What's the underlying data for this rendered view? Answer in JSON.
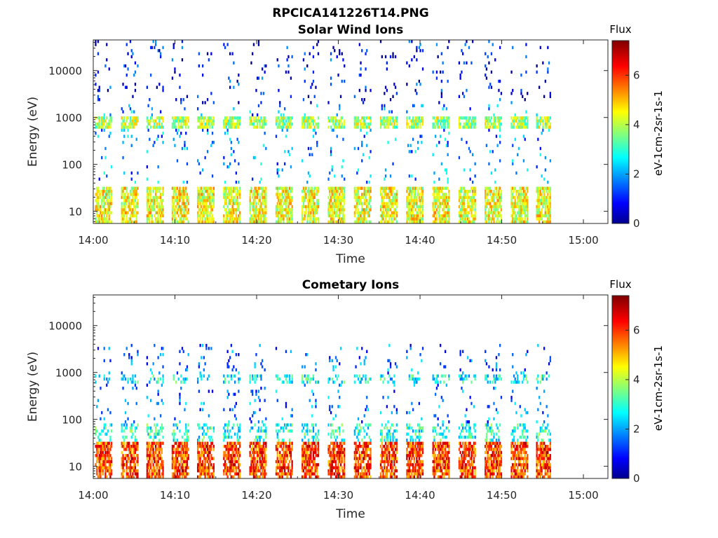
{
  "figure_title": "RPCICA141226T14.PNG",
  "chart_data": [
    {
      "type": "heatmap",
      "title": "Solar Wind Ions",
      "xlabel": "Time",
      "ylabel": "Energy (eV)",
      "x_ticks": [
        "14:00",
        "14:10",
        "14:20",
        "14:30",
        "14:40",
        "14:50",
        "15:00"
      ],
      "xlim_minutes": [
        0,
        63
      ],
      "y_ticks": [
        "10",
        "100",
        "1000",
        "10000"
      ],
      "ylim": [
        5.5,
        45000
      ],
      "y_scale": "log",
      "colorbar": {
        "title": "Flux",
        "label": "eV-1cm-2sr-1s-1",
        "ticks": [
          "0",
          "2",
          "4",
          "6"
        ],
        "range": [
          0,
          7.4
        ],
        "colormap": "jet"
      },
      "cycle_start_minutes": [
        0.2,
        3.4,
        6.5,
        9.6,
        12.7,
        15.9,
        19.1,
        22.3,
        25.5,
        28.7,
        31.9,
        35.1,
        38.3,
        41.5,
        44.7,
        47.9,
        51.1,
        54.2
      ],
      "data_end_minutes": 56,
      "bands": [
        {
          "energy_range": [
            5.5,
            35
          ],
          "flux": 4.5
        },
        {
          "energy_range": [
            550,
            1000
          ],
          "flux": 4.0
        },
        {
          "energy_range": [
            40,
            2000
          ],
          "flux": 2.0
        },
        {
          "energy_range": [
            2000,
            45000
          ],
          "flux": 1.0
        }
      ]
    },
    {
      "type": "heatmap",
      "title": "Cometary Ions",
      "xlabel": "Time",
      "ylabel": "Energy (eV)",
      "x_ticks": [
        "14:00",
        "14:10",
        "14:20",
        "14:30",
        "14:40",
        "14:50",
        "15:00"
      ],
      "xlim_minutes": [
        0,
        63
      ],
      "y_ticks": [
        "10",
        "100",
        "1000",
        "10000"
      ],
      "ylim": [
        5.5,
        45000
      ],
      "y_scale": "log",
      "colorbar": {
        "title": "Flux",
        "label": "eV-1cm-2sr-1s-1",
        "ticks": [
          "0",
          "2",
          "4",
          "6"
        ],
        "range": [
          0,
          7.4
        ],
        "colormap": "jet"
      },
      "cycle_start_minutes": [
        0.2,
        3.4,
        6.5,
        9.6,
        12.7,
        15.9,
        19.1,
        22.3,
        25.5,
        28.7,
        31.9,
        35.1,
        38.3,
        41.5,
        44.7,
        47.9,
        51.1,
        54.2
      ],
      "data_end_minutes": 56,
      "bands": [
        {
          "energy_range": [
            5.5,
            35
          ],
          "flux": 6.0
        },
        {
          "energy_range": [
            35,
            80
          ],
          "flux": 3.0
        },
        {
          "energy_range": [
            600,
            900
          ],
          "flux": 2.8
        },
        {
          "energy_range": [
            80,
            1500
          ],
          "flux": 1.8
        },
        {
          "energy_range": [
            1500,
            4000
          ],
          "flux": 1.6
        }
      ]
    }
  ]
}
